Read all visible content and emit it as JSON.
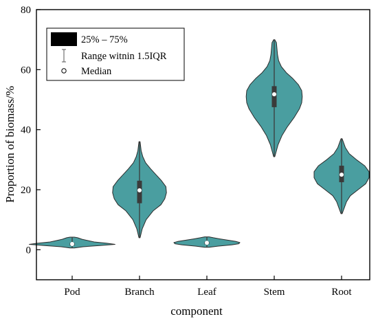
{
  "chart_data": {
    "type": "violin",
    "xlabel": "component",
    "ylabel": "Proportion of biomass/%",
    "ylim": [
      -10,
      80
    ],
    "yticks": [
      0,
      20,
      40,
      60,
      80
    ],
    "categories": [
      "Pod",
      "Branch",
      "Leaf",
      "Stem",
      "Root"
    ],
    "fill_color": "#4a9ea0",
    "box_color": "#3a3a3a",
    "violins": [
      {
        "name": "Pod",
        "min": 0.6,
        "q1": 1.4,
        "median": 1.9,
        "q3": 2.3,
        "max": 4.2,
        "profile": [
          [
            0.6,
            0.04
          ],
          [
            1.0,
            0.2
          ],
          [
            1.4,
            0.5
          ],
          [
            1.8,
            0.78
          ],
          [
            2.2,
            0.62
          ],
          [
            2.6,
            0.4
          ],
          [
            3.0,
            0.3
          ],
          [
            3.5,
            0.18
          ],
          [
            4.0,
            0.1
          ],
          [
            4.2,
            0.04
          ]
        ]
      },
      {
        "name": "Branch",
        "min": 4.0,
        "q1": 15.5,
        "median": 19.8,
        "q3": 23.0,
        "max": 36.0,
        "profile": [
          [
            4.0,
            0.01
          ],
          [
            7,
            0.05
          ],
          [
            10,
            0.12
          ],
          [
            13,
            0.25
          ],
          [
            15,
            0.39
          ],
          [
            17,
            0.46
          ],
          [
            19,
            0.49
          ],
          [
            21,
            0.48
          ],
          [
            23,
            0.4
          ],
          [
            25,
            0.3
          ],
          [
            27,
            0.2
          ],
          [
            29,
            0.11
          ],
          [
            31,
            0.06
          ],
          [
            33,
            0.03
          ],
          [
            36,
            0.01
          ]
        ]
      },
      {
        "name": "Leaf",
        "min": 0.8,
        "q1": 1.8,
        "median": 2.3,
        "q3": 2.7,
        "max": 4.3,
        "profile": [
          [
            0.8,
            0.04
          ],
          [
            1.2,
            0.2
          ],
          [
            1.6,
            0.45
          ],
          [
            2.0,
            0.58
          ],
          [
            2.4,
            0.6
          ],
          [
            2.8,
            0.52
          ],
          [
            3.2,
            0.38
          ],
          [
            3.6,
            0.24
          ],
          [
            4.0,
            0.12
          ],
          [
            4.3,
            0.04
          ]
        ]
      },
      {
        "name": "Stem",
        "min": 31.0,
        "q1": 47.5,
        "median": 51.8,
        "q3": 54.5,
        "max": 70.0,
        "profile": [
          [
            31,
            0.01
          ],
          [
            33,
            0.04
          ],
          [
            35,
            0.07
          ],
          [
            38,
            0.14
          ],
          [
            41,
            0.24
          ],
          [
            44,
            0.36
          ],
          [
            47,
            0.46
          ],
          [
            49,
            0.5
          ],
          [
            51,
            0.51
          ],
          [
            53,
            0.5
          ],
          [
            55,
            0.44
          ],
          [
            57,
            0.34
          ],
          [
            59,
            0.22
          ],
          [
            61,
            0.13
          ],
          [
            63,
            0.08
          ],
          [
            65,
            0.06
          ],
          [
            67,
            0.05
          ],
          [
            69,
            0.04
          ],
          [
            70,
            0.01
          ]
        ]
      },
      {
        "name": "Root",
        "min": 12.0,
        "q1": 22.5,
        "median": 25.0,
        "q3": 28.0,
        "max": 37.0,
        "profile": [
          [
            12,
            0.01
          ],
          [
            14,
            0.05
          ],
          [
            16,
            0.09
          ],
          [
            18,
            0.16
          ],
          [
            20,
            0.3
          ],
          [
            22,
            0.44
          ],
          [
            24,
            0.5
          ],
          [
            26,
            0.5
          ],
          [
            28,
            0.42
          ],
          [
            30,
            0.27
          ],
          [
            32,
            0.14
          ],
          [
            34,
            0.07
          ],
          [
            36,
            0.03
          ],
          [
            37,
            0.01
          ]
        ]
      }
    ]
  },
  "legend": {
    "items": [
      {
        "label": "25% – 75%"
      },
      {
        "label": "Range witnin 1.5IQR"
      },
      {
        "label": "Median"
      }
    ]
  }
}
